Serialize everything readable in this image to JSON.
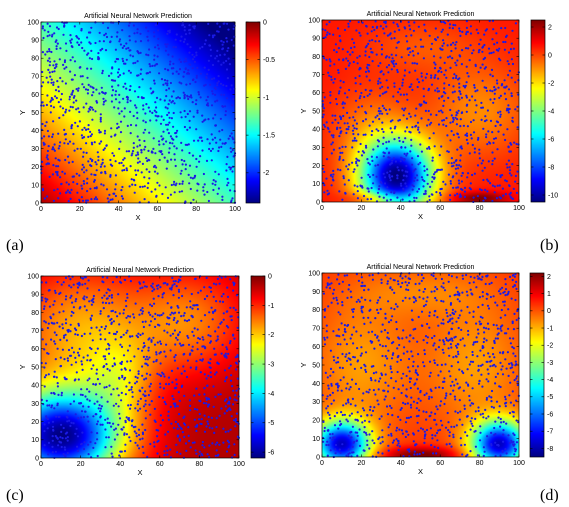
{
  "chart_data": [
    {
      "type": "heatmap",
      "panel_label": "(a)",
      "title": "Artificial Neural Network Prediction",
      "xlabel": "X",
      "ylabel": "Y",
      "xlim": [
        0,
        100
      ],
      "ylim": [
        0,
        100
      ],
      "xticks": [
        "0",
        "20",
        "40",
        "60",
        "80",
        "100"
      ],
      "yticks": [
        "0",
        "10",
        "20",
        "30",
        "40",
        "50",
        "60",
        "70",
        "80",
        "90",
        "100"
      ],
      "colorbar": {
        "min": -2.4,
        "max": 0,
        "ticks": [
          0,
          -0.5,
          -1,
          -1.5,
          -2
        ],
        "tick_labels": [
          "0",
          "-0.5",
          "-1",
          "-1.5",
          "-2"
        ]
      },
      "colormap": "jet",
      "scatter_color": "#1a1ae6",
      "field": {
        "base": -0.1,
        "terms": [
          {
            "kind": "linear",
            "gx": -0.0125,
            "gy": -0.0125,
            "cx": 0,
            "cy": 0
          }
        ],
        "clamp": [
          -2.4,
          0
        ]
      }
    },
    {
      "type": "heatmap",
      "panel_label": "(b)",
      "title": "Artificial Neural Network Prediction",
      "xlabel": "X",
      "ylabel": "Y",
      "xlim": [
        0,
        100
      ],
      "ylim": [
        0,
        100
      ],
      "xticks": [
        "0",
        "20",
        "40",
        "60",
        "80",
        "100"
      ],
      "yticks": [
        "0",
        "10",
        "20",
        "30",
        "40",
        "50",
        "60",
        "70",
        "80",
        "90",
        "100"
      ],
      "colorbar": {
        "min": -10.5,
        "max": 2.5,
        "ticks": [
          2,
          0,
          -2,
          -4,
          -6,
          -8,
          -10
        ],
        "tick_labels": [
          "2",
          "0",
          "-2",
          "-4",
          "-6",
          "-8",
          "-10"
        ]
      },
      "colormap": "jet",
      "scatter_color": "#1a1ae6",
      "field": {
        "base": 0.6,
        "terms": [
          {
            "kind": "gauss",
            "cx": 38,
            "cy": 14,
            "sx": 13,
            "sy": 14,
            "a": -11
          },
          {
            "kind": "gauss",
            "cx": 80,
            "cy": 50,
            "sx": 18,
            "sy": 18,
            "a": -1.5
          },
          {
            "kind": "gauss",
            "cx": 25,
            "cy": 40,
            "sx": 14,
            "sy": 16,
            "a": -1.2
          },
          {
            "kind": "gauss",
            "cx": 50,
            "cy": 85,
            "sx": 20,
            "sy": 10,
            "a": -0.8
          },
          {
            "kind": "gauss",
            "cx": 28,
            "cy": 2,
            "sx": 10,
            "sy": 2.5,
            "a": 2
          },
          {
            "kind": "gauss",
            "cx": 80,
            "cy": 2,
            "sx": 10,
            "sy": 2.5,
            "a": 2
          }
        ],
        "clamp": [
          -10.5,
          2.5
        ]
      }
    },
    {
      "type": "heatmap",
      "panel_label": "(c)",
      "title": "Artificial Neural Network Prediction",
      "xlabel": "X",
      "ylabel": "Y",
      "xlim": [
        0,
        100
      ],
      "ylim": [
        0,
        100
      ],
      "xticks": [
        "0",
        "20",
        "40",
        "60",
        "80",
        "100"
      ],
      "yticks": [
        "0",
        "10",
        "20",
        "30",
        "40",
        "50",
        "60",
        "70",
        "80",
        "90",
        "100"
      ],
      "colorbar": {
        "min": -6.2,
        "max": 0,
        "ticks": [
          0,
          -1,
          -2,
          -3,
          -4,
          -5,
          -6
        ],
        "tick_labels": [
          "0",
          "-1",
          "-2",
          "-3",
          "-4",
          "-5",
          "-6"
        ]
      },
      "colormap": "jet",
      "scatter_color": "#1a1ae6",
      "field": {
        "base": -0.3,
        "terms": [
          {
            "kind": "gauss",
            "cx": 10,
            "cy": 12,
            "sx": 22,
            "sy": 18,
            "a": -5.8
          },
          {
            "kind": "gauss",
            "cx": 20,
            "cy": 70,
            "sx": 25,
            "sy": 25,
            "a": -1.5
          },
          {
            "kind": "gauss",
            "cx": 75,
            "cy": 75,
            "sx": 20,
            "sy": 20,
            "a": -1.2
          },
          {
            "kind": "gauss",
            "cx": 40,
            "cy": 45,
            "sx": 12,
            "sy": 15,
            "a": -1.0
          }
        ],
        "clamp": [
          -6.2,
          0
        ]
      }
    },
    {
      "type": "heatmap",
      "panel_label": "(d)",
      "title": "Artificial Neural Network Prediction",
      "xlabel": "X",
      "ylabel": "Y",
      "xlim": [
        0,
        100
      ],
      "ylim": [
        0,
        100
      ],
      "xticks": [
        "0",
        "20",
        "40",
        "60",
        "80",
        "100"
      ],
      "yticks": [
        "0",
        "10",
        "20",
        "30",
        "40",
        "50",
        "60",
        "70",
        "80",
        "90",
        "100"
      ],
      "colorbar": {
        "min": -8.5,
        "max": 2.2,
        "ticks": [
          2,
          1,
          0,
          -1,
          -2,
          -3,
          -4,
          -5,
          -6,
          -7,
          -8
        ],
        "tick_labels": [
          "2",
          "1",
          "0",
          "-1",
          "-2",
          "-3",
          "-4",
          "-5",
          "-6",
          "-7",
          "-8"
        ]
      },
      "colormap": "jet",
      "scatter_color": "#1a1ae6",
      "field": {
        "base": 0.4,
        "terms": [
          {
            "kind": "gauss",
            "cx": 10,
            "cy": 7,
            "sx": 10,
            "sy": 9,
            "a": -8
          },
          {
            "kind": "gauss",
            "cx": 90,
            "cy": 7,
            "sx": 10,
            "sy": 9,
            "a": -8
          },
          {
            "kind": "gauss",
            "cx": 50,
            "cy": 1,
            "sx": 14,
            "sy": 3,
            "a": 2
          },
          {
            "kind": "gauss",
            "cx": 20,
            "cy": 50,
            "sx": 18,
            "sy": 25,
            "a": -1.2
          },
          {
            "kind": "gauss",
            "cx": 78,
            "cy": 50,
            "sx": 18,
            "sy": 25,
            "a": -1.2
          },
          {
            "kind": "gauss",
            "cx": 50,
            "cy": 90,
            "sx": 25,
            "sy": 10,
            "a": -0.8
          }
        ],
        "clamp": [
          -8.5,
          2.2
        ]
      }
    }
  ]
}
